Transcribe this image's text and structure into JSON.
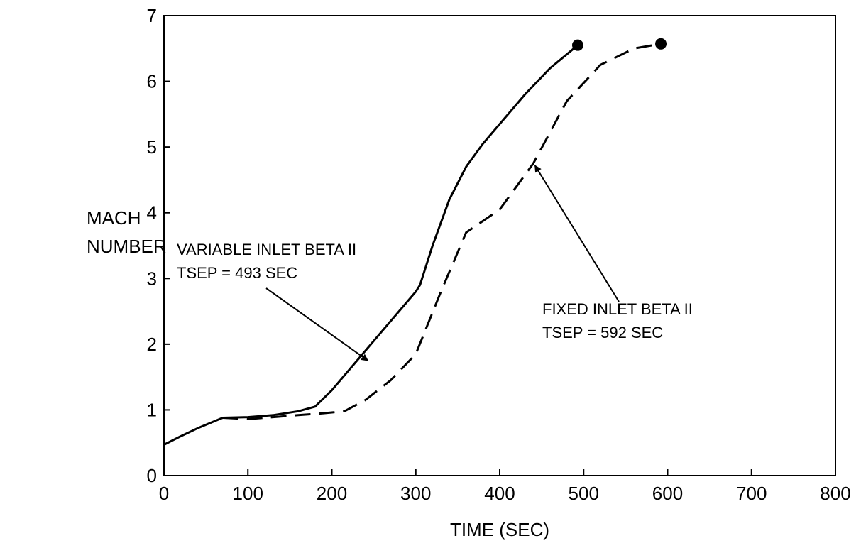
{
  "chart_data": {
    "type": "line",
    "xlabel": "TIME (SEC)",
    "ylabel_lines": [
      "MACH",
      "NUMBER"
    ],
    "xlim": [
      0,
      800
    ],
    "ylim": [
      0,
      7
    ],
    "x_ticks": [
      0,
      100,
      200,
      300,
      400,
      500,
      600,
      700,
      800
    ],
    "y_ticks": [
      0,
      1,
      2,
      3,
      4,
      5,
      6,
      7
    ],
    "grid": false,
    "legend": "none",
    "series": [
      {
        "style": "solid",
        "color": "#000000",
        "x": [
          0,
          20,
          40,
          70,
          100,
          130,
          160,
          180,
          200,
          250,
          300,
          305,
          320,
          340,
          360,
          380,
          400,
          430,
          460,
          493
        ],
        "y": [
          0.47,
          0.6,
          0.72,
          0.88,
          0.89,
          0.92,
          0.98,
          1.05,
          1.3,
          2.05,
          2.8,
          2.9,
          3.5,
          4.2,
          4.7,
          5.05,
          5.35,
          5.8,
          6.2,
          6.55
        ],
        "end_marker": true
      },
      {
        "style": "dashed",
        "color": "#000000",
        "x": [
          70,
          100,
          130,
          160,
          190,
          215,
          240,
          270,
          300,
          330,
          360,
          400,
          440,
          480,
          520,
          560,
          592
        ],
        "y": [
          0.88,
          0.86,
          0.89,
          0.92,
          0.95,
          0.98,
          1.15,
          1.45,
          1.85,
          2.8,
          3.7,
          4.05,
          4.75,
          5.7,
          6.25,
          6.5,
          6.57
        ],
        "end_marker": true
      }
    ],
    "annotations": [
      {
        "lines": [
          "VARIABLE INLET BETA II",
          "TSEP = 493 SEC"
        ],
        "arrow_to": [
          243,
          1.75
        ]
      },
      {
        "lines": [
          "FIXED INLET BETA II",
          "TSEP = 592 SEC"
        ],
        "arrow_to": [
          442,
          4.72
        ]
      }
    ]
  }
}
